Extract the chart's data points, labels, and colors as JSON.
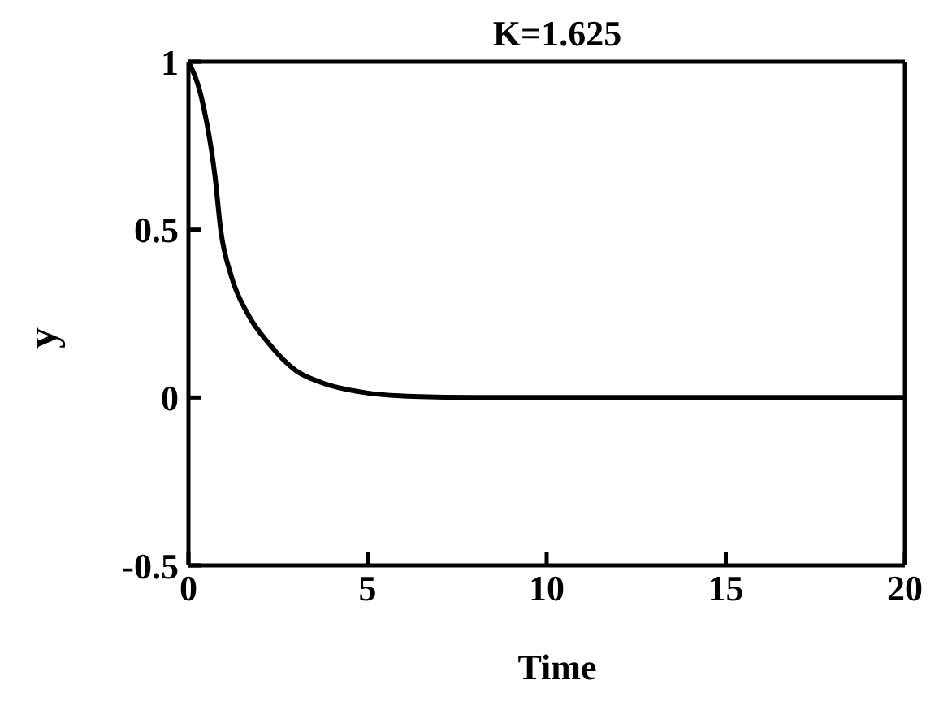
{
  "chart_data": {
    "type": "line",
    "title": "K=1.625",
    "xlabel": "Time",
    "ylabel": "y",
    "series": [
      {
        "color": "#000000",
        "x": [
          0,
          0.37,
          0.74,
          0.9,
          1.2,
          1.65,
          2.25,
          3,
          3.7,
          4.9,
          5.9,
          8,
          10,
          15,
          20
        ],
        "values": [
          1,
          0.89,
          0.66,
          0.5,
          0.36,
          0.25,
          0.16,
          0.08,
          0.045,
          0.015,
          0.005,
          0,
          0,
          0,
          0
        ]
      }
    ],
    "xlim": [
      0,
      20
    ],
    "xticks": [
      0,
      5,
      10,
      15,
      20
    ],
    "ylim": [
      -0.5,
      1
    ],
    "yticks": [
      -0.5,
      0,
      0.5,
      1
    ],
    "grid": false,
    "legend": false,
    "marker": "none",
    "line_style": "solid"
  }
}
